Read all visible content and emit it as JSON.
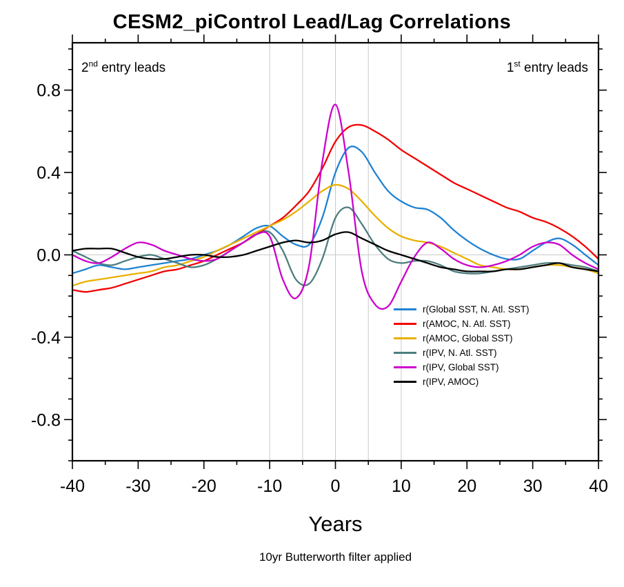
{
  "page": {
    "background": "#ffffff"
  },
  "chart_data": {
    "type": "line",
    "title": "CESM2_piControl Lead/Lag Correlations",
    "xlabel": "Years",
    "caption": "10yr Butterworth filter applied",
    "lead_labels": {
      "left": {
        "num": "2",
        "sup": "nd",
        "rest": " entry leads"
      },
      "right": {
        "num": "1",
        "sup": "st",
        "rest": " entry leads"
      }
    },
    "xlim": [
      -40,
      40
    ],
    "ylim": [
      -1.0,
      1.03
    ],
    "x_major_ticks": [
      -40,
      -30,
      -20,
      -10,
      0,
      10,
      20,
      30,
      40
    ],
    "x_tick_labels": [
      "-40",
      "-30",
      "-20",
      "-10",
      "0",
      "10",
      "20",
      "30",
      "40"
    ],
    "x_minor_step": 5,
    "y_major_ticks": [
      -0.8,
      -0.4,
      0.0,
      0.4,
      0.8
    ],
    "y_tick_labels": [
      "-0.8",
      "-0.4",
      "0.0",
      "0.4",
      "0.8"
    ],
    "y_minor_step": 0.1,
    "grid_x": [
      -10,
      -5,
      0,
      5,
      10
    ],
    "grid_y": [
      0
    ],
    "grid_color": "#c9c9c9",
    "axis_color": "#000000",
    "legend_position": "inside right, below center",
    "x": [
      -40,
      -38,
      -36,
      -34,
      -32,
      -30,
      -28,
      -26,
      -24,
      -22,
      -20,
      -18,
      -16,
      -14,
      -12,
      -10,
      -8,
      -6,
      -4,
      -2,
      0,
      2,
      4,
      6,
      8,
      10,
      12,
      14,
      16,
      18,
      20,
      22,
      24,
      26,
      28,
      30,
      32,
      34,
      36,
      38,
      40
    ],
    "series": [
      {
        "name": "r(Global SST, N. Atl. SST)",
        "color": "#1f82d2",
        "values": [
          -0.09,
          -0.07,
          -0.05,
          -0.06,
          -0.07,
          -0.06,
          -0.05,
          -0.04,
          -0.03,
          -0.02,
          0.0,
          0.02,
          0.05,
          0.09,
          0.13,
          0.14,
          0.09,
          0.05,
          0.05,
          0.18,
          0.4,
          0.52,
          0.5,
          0.4,
          0.31,
          0.26,
          0.23,
          0.22,
          0.18,
          0.12,
          0.07,
          0.03,
          0.0,
          -0.02,
          -0.02,
          0.02,
          0.06,
          0.08,
          0.05,
          0.0,
          -0.05
        ]
      },
      {
        "name": "r(AMOC, N. Atl. SST)",
        "color": "#f20000",
        "values": [
          -0.17,
          -0.18,
          -0.17,
          -0.16,
          -0.14,
          -0.12,
          -0.1,
          -0.08,
          -0.07,
          -0.05,
          -0.03,
          0.0,
          0.03,
          0.06,
          0.1,
          0.14,
          0.18,
          0.24,
          0.31,
          0.42,
          0.55,
          0.62,
          0.63,
          0.6,
          0.56,
          0.51,
          0.47,
          0.43,
          0.39,
          0.35,
          0.32,
          0.29,
          0.26,
          0.23,
          0.21,
          0.18,
          0.16,
          0.13,
          0.09,
          0.04,
          -0.02
        ]
      },
      {
        "name": "r(AMOC, Global SST)",
        "color": "#e8b000",
        "values": [
          -0.15,
          -0.13,
          -0.12,
          -0.11,
          -0.1,
          -0.09,
          -0.08,
          -0.06,
          -0.05,
          -0.03,
          -0.01,
          0.02,
          0.05,
          0.08,
          0.11,
          0.14,
          0.17,
          0.21,
          0.26,
          0.31,
          0.34,
          0.32,
          0.26,
          0.19,
          0.13,
          0.09,
          0.07,
          0.06,
          0.04,
          0.01,
          -0.02,
          -0.05,
          -0.06,
          -0.07,
          -0.07,
          -0.06,
          -0.05,
          -0.05,
          -0.06,
          -0.07,
          -0.09
        ]
      },
      {
        "name": "r(IPV, N. Atl. SST)",
        "color": "#4d7d7d",
        "values": [
          0.02,
          -0.01,
          -0.04,
          -0.05,
          -0.03,
          -0.01,
          0.0,
          -0.02,
          -0.04,
          -0.06,
          -0.05,
          -0.02,
          0.02,
          0.06,
          0.1,
          0.11,
          0.02,
          -0.12,
          -0.14,
          -0.02,
          0.18,
          0.23,
          0.15,
          0.05,
          -0.02,
          -0.04,
          -0.03,
          -0.03,
          -0.05,
          -0.08,
          -0.09,
          -0.09,
          -0.08,
          -0.07,
          -0.06,
          -0.05,
          -0.04,
          -0.04,
          -0.05,
          -0.06,
          -0.08
        ]
      },
      {
        "name": "r(IPV, Global SST)",
        "color": "#cc00cc",
        "values": [
          0.0,
          -0.03,
          -0.04,
          -0.01,
          0.03,
          0.06,
          0.05,
          0.02,
          0.0,
          -0.02,
          -0.03,
          -0.02,
          0.02,
          0.06,
          0.1,
          0.09,
          -0.12,
          -0.21,
          -0.05,
          0.45,
          0.73,
          0.4,
          -0.08,
          -0.24,
          -0.25,
          -0.13,
          -0.01,
          0.06,
          0.03,
          -0.02,
          -0.05,
          -0.06,
          -0.05,
          -0.03,
          0.0,
          0.04,
          0.06,
          0.05,
          0.0,
          -0.04,
          -0.07
        ]
      },
      {
        "name": "r(IPV, AMOC)",
        "color": "#000000",
        "values": [
          0.02,
          0.03,
          0.03,
          0.03,
          0.01,
          -0.01,
          -0.02,
          -0.02,
          -0.01,
          0.0,
          0.0,
          -0.01,
          -0.01,
          0.0,
          0.02,
          0.04,
          0.06,
          0.07,
          0.06,
          0.07,
          0.1,
          0.11,
          0.08,
          0.05,
          0.02,
          0.0,
          -0.02,
          -0.04,
          -0.06,
          -0.07,
          -0.08,
          -0.08,
          -0.08,
          -0.07,
          -0.07,
          -0.06,
          -0.05,
          -0.04,
          -0.06,
          -0.07,
          -0.08
        ]
      }
    ]
  }
}
